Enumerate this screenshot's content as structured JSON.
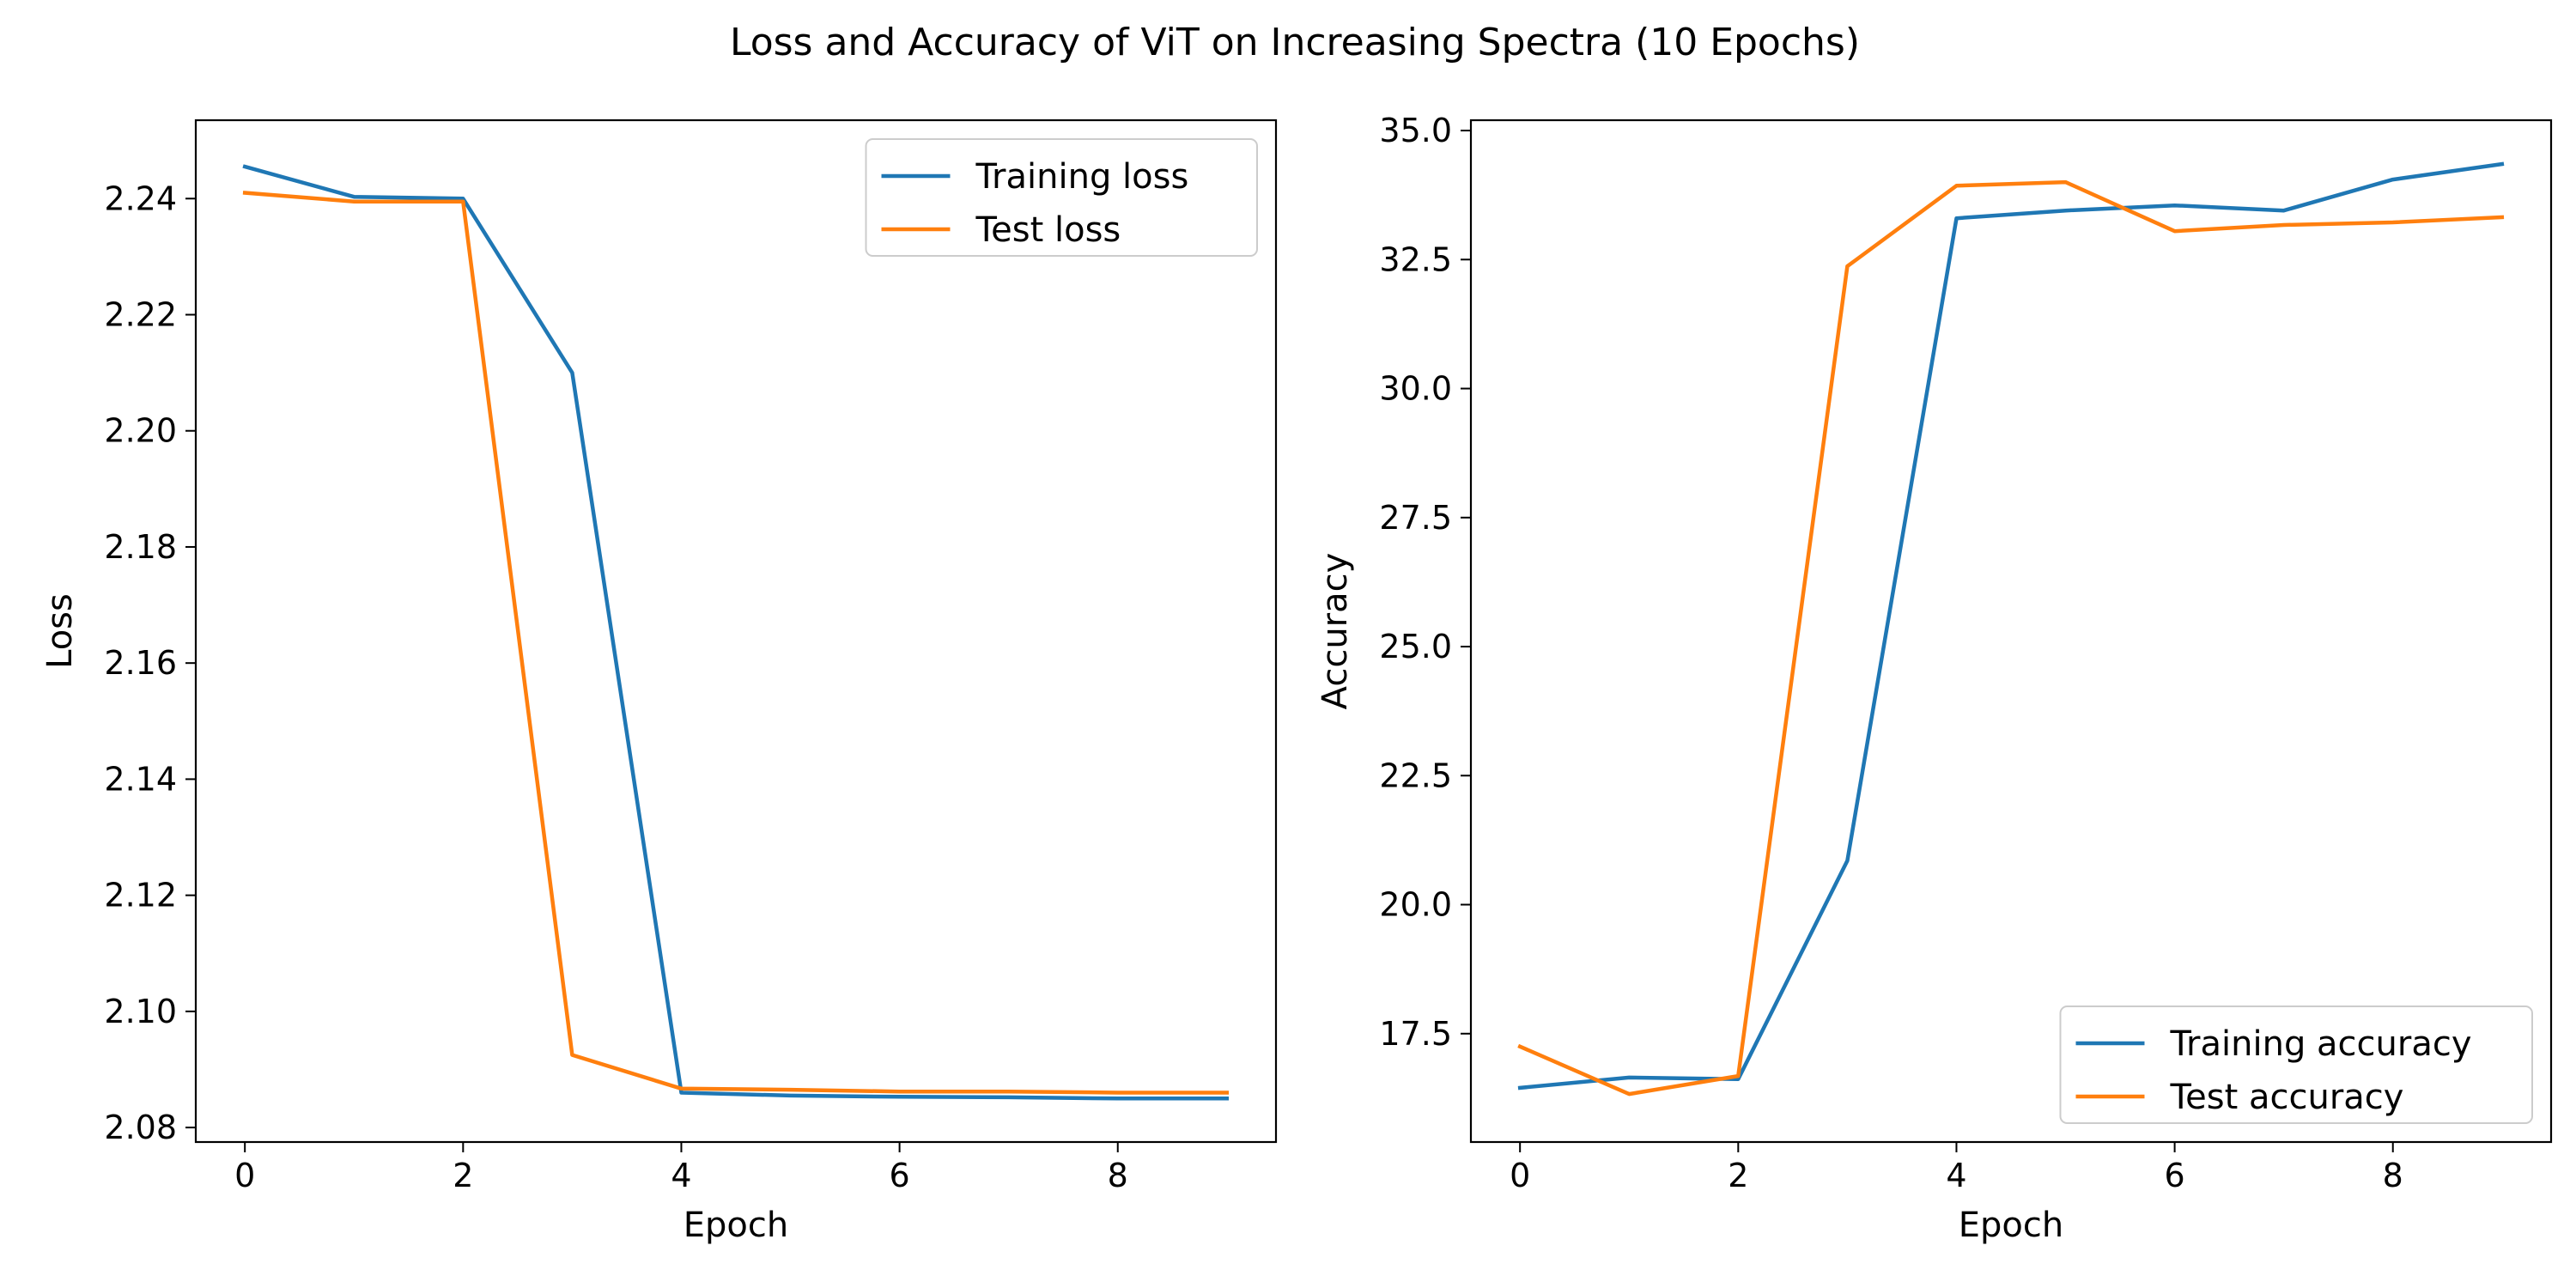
{
  "figure_title": "Loss and Accuracy of ViT on Increasing Spectra (10 Epochs)",
  "colors": {
    "series_1": "#1f77b4",
    "series_2": "#ff7f0e",
    "axes": "#000000",
    "legend_border": "#cccccc"
  },
  "chart_data": [
    {
      "type": "line",
      "name": "loss-chart",
      "title": "",
      "xlabel": "Epoch",
      "ylabel": "Loss",
      "x": [
        0,
        1,
        2,
        3,
        4,
        5,
        6,
        7,
        8,
        9
      ],
      "xlim": [
        -0.45,
        9.45
      ],
      "ylim": [
        2.0775,
        2.2535
      ],
      "xticks": [
        0,
        2,
        4,
        6,
        8
      ],
      "yticks": [
        2.08,
        2.1,
        2.12,
        2.14,
        2.16,
        2.18,
        2.2,
        2.22,
        2.24
      ],
      "ytick_decimals": 2,
      "grid": false,
      "legend_position": "top-right",
      "series": [
        {
          "name": "Training loss",
          "values": [
            2.2455,
            2.2403,
            2.24,
            2.21,
            2.086,
            2.0855,
            2.0853,
            2.0852,
            2.085,
            2.085
          ]
        },
        {
          "name": "Test loss",
          "values": [
            2.241,
            2.2395,
            2.2395,
            2.0925,
            2.0867,
            2.0865,
            2.0862,
            2.0862,
            2.086,
            2.086
          ]
        }
      ]
    },
    {
      "type": "line",
      "name": "accuracy-chart",
      "title": "",
      "xlabel": "Epoch",
      "ylabel": "Accuracy",
      "x": [
        0,
        1,
        2,
        3,
        4,
        5,
        6,
        7,
        8,
        9
      ],
      "xlim": [
        -0.45,
        9.45
      ],
      "ylim": [
        15.4,
        35.2
      ],
      "xticks": [
        0,
        2,
        4,
        6,
        8
      ],
      "yticks": [
        17.5,
        20.0,
        22.5,
        25.0,
        27.5,
        30.0,
        32.5,
        35.0
      ],
      "ytick_decimals": 1,
      "grid": false,
      "legend_position": "bottom-right",
      "series": [
        {
          "name": "Training accuracy",
          "values": [
            16.45,
            16.65,
            16.62,
            20.85,
            33.3,
            33.45,
            33.55,
            33.45,
            34.05,
            34.35
          ]
        },
        {
          "name": "Test accuracy",
          "values": [
            17.25,
            16.33,
            16.68,
            32.37,
            33.93,
            34.0,
            33.05,
            33.17,
            33.22,
            33.32
          ]
        }
      ]
    }
  ]
}
